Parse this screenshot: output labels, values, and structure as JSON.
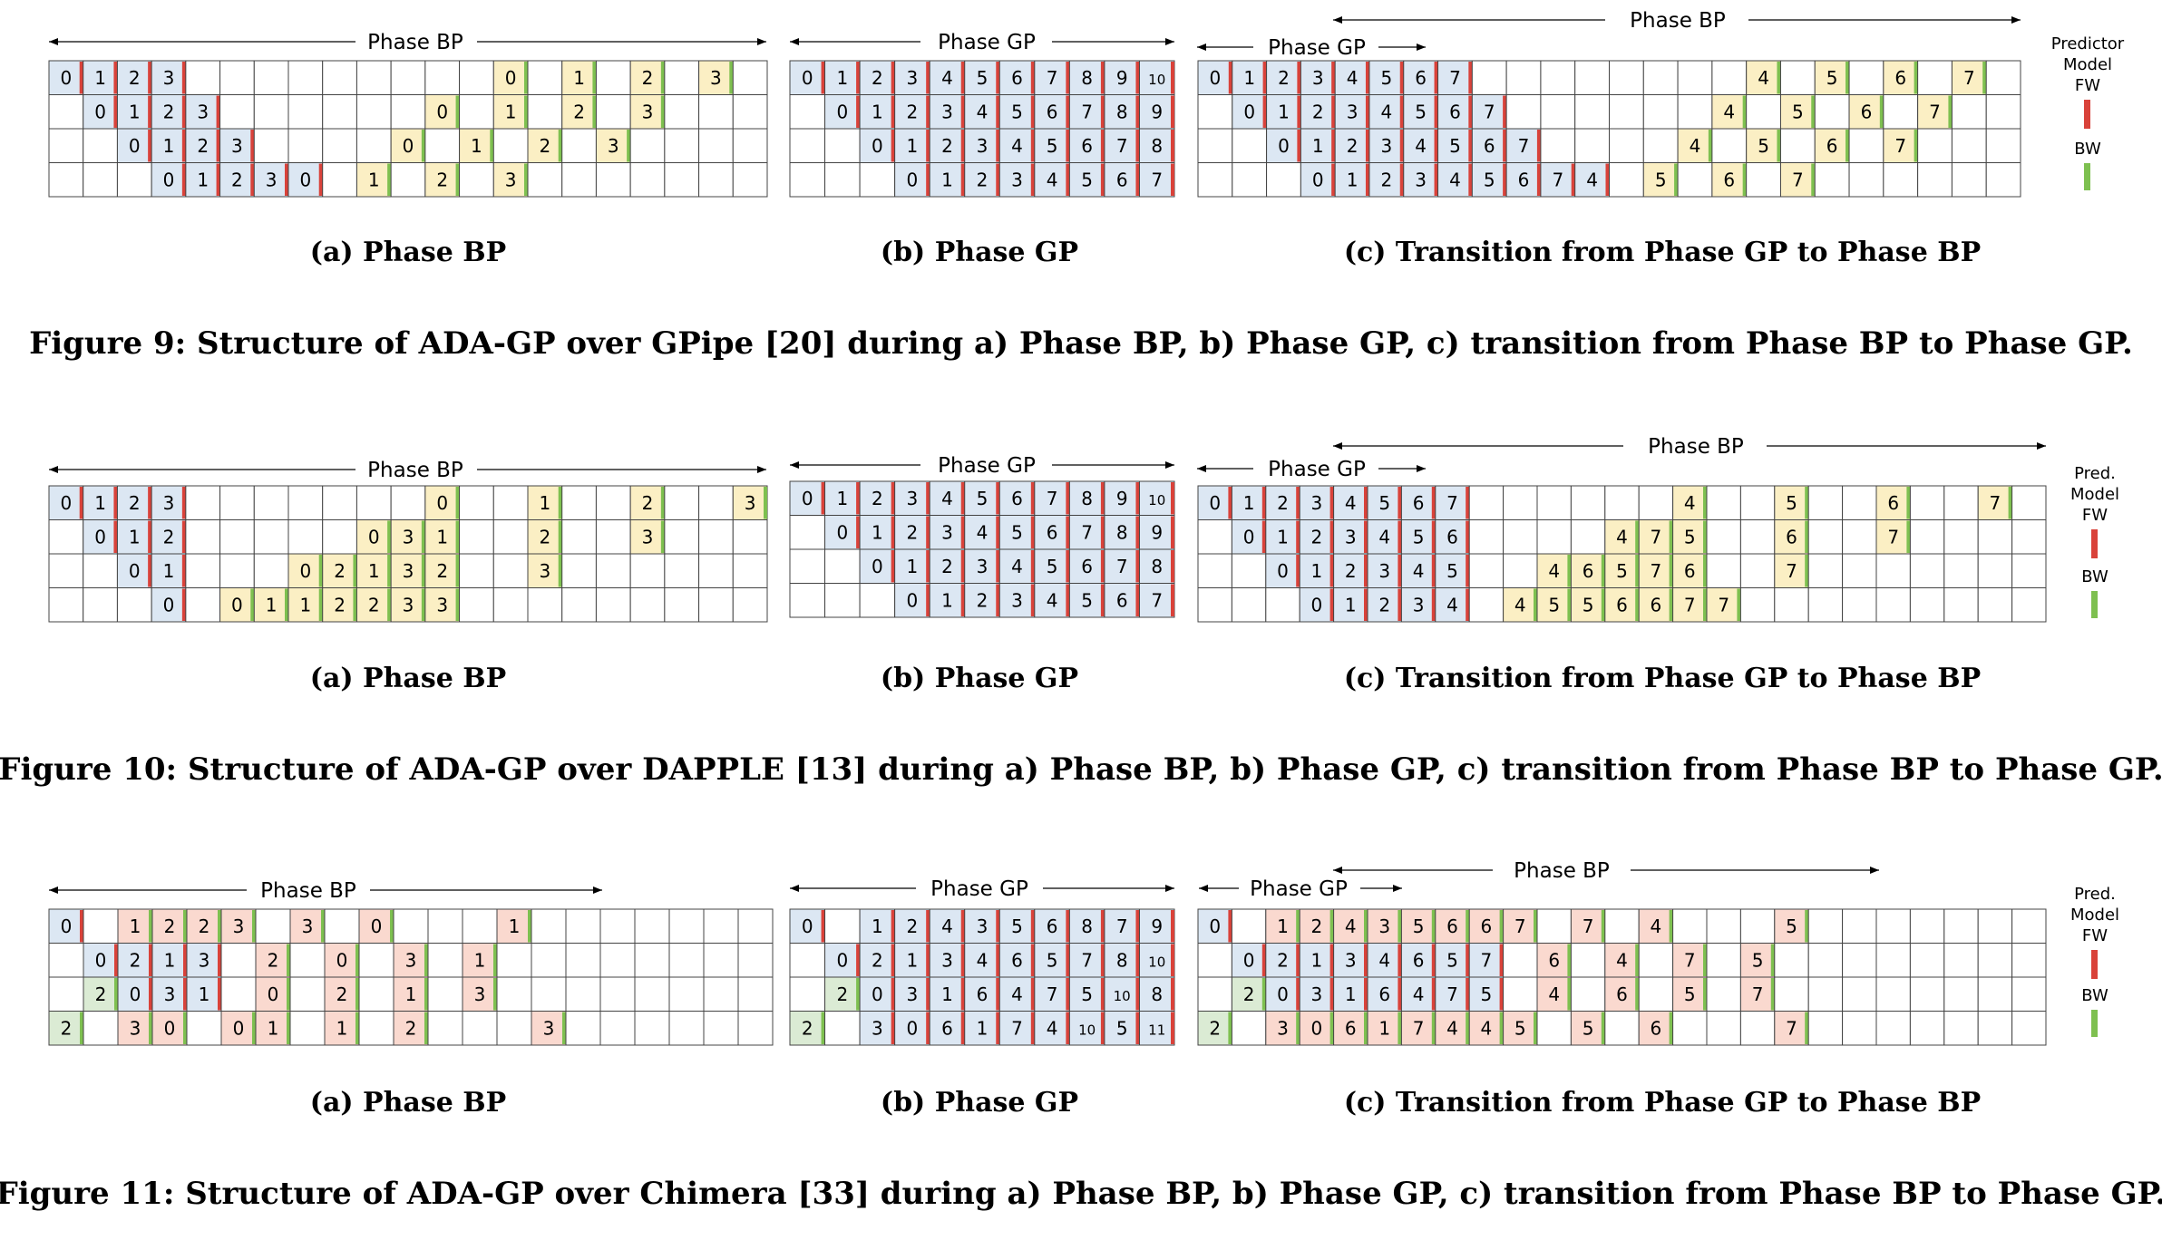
{
  "colors": {
    "forward_fill": "#dce7f3",
    "backward_gp_fill": "#fbefc4",
    "backward_bp_fill": "#fad9cf",
    "recompute_fill": "#dbebd4",
    "grid_stroke": "#444444",
    "fw_marker": "#d9423a",
    "bw_marker": "#7ec050"
  },
  "legend": {
    "fig9": {
      "title_lines": [
        "Predictor",
        "Model"
      ],
      "fw": "FW",
      "bw": "BW"
    },
    "fig10": {
      "title_lines": [
        "Pred.",
        "Model"
      ],
      "fw": "FW",
      "bw": "BW"
    },
    "fig11": {
      "title_lines": [
        "Pred.",
        "Model"
      ],
      "fw": "FW",
      "bw": "BW"
    }
  },
  "figures": [
    {
      "id": "fig9",
      "caption": "Figure 9: Structure of ADA-GP over GPipe [20] during a) Phase BP, b) Phase GP, c) transition from Phase BP to Phase GP.",
      "panels": [
        {
          "caption": "(a) Phase BP",
          "phase_labels": [
            "Phase BP"
          ],
          "rows": [
            [
              "0",
              "1",
              "2",
              "3",
              "",
              "",
              "",
              "",
              "",
              "",
              "",
              "",
              "",
              "0",
              "",
              "1",
              "",
              "2",
              "",
              "3",
              ""
            ],
            [
              "",
              "0",
              "1",
              "2",
              "3",
              "",
              "",
              "",
              "",
              "",
              "",
              "0",
              "",
              "1",
              "",
              "2",
              "",
              "3",
              "",
              "",
              ""
            ],
            [
              "",
              "",
              "0",
              "1",
              "2",
              "3",
              "",
              "",
              "",
              "",
              "0",
              "",
              "1",
              "",
              "2",
              "",
              "3",
              "",
              "",
              "",
              ""
            ],
            [
              "",
              "",
              "",
              "0",
              "1",
              "2",
              "3",
              "0",
              "",
              "1",
              "",
              "2",
              "",
              "3",
              "",
              "",
              "",
              "",
              "",
              "",
              ""
            ]
          ]
        },
        {
          "caption": "(b) Phase GP",
          "phase_labels": [
            "Phase GP"
          ],
          "rows": [
            [
              "0",
              "1",
              "2",
              "3",
              "4",
              "5",
              "6",
              "7",
              "8",
              "9",
              "10"
            ],
            [
              "",
              "0",
              "1",
              "2",
              "3",
              "4",
              "5",
              "6",
              "7",
              "8",
              "9"
            ],
            [
              "",
              "",
              "0",
              "1",
              "2",
              "3",
              "4",
              "5",
              "6",
              "7",
              "8"
            ],
            [
              "",
              "",
              "",
              "0",
              "1",
              "2",
              "3",
              "4",
              "5",
              "6",
              "7"
            ]
          ]
        },
        {
          "caption": "(c) Transition from Phase GP to Phase BP",
          "phase_labels": [
            "Phase GP",
            "Phase BP"
          ],
          "rows": [
            [
              "0",
              "1",
              "2",
              "3",
              "4",
              "5",
              "6",
              "7",
              "",
              "",
              "",
              "",
              "",
              "",
              "",
              "",
              "4",
              "",
              "5",
              "",
              "6",
              "",
              "7",
              ""
            ],
            [
              "",
              "0",
              "1",
              "2",
              "3",
              "4",
              "5",
              "6",
              "7",
              "",
              "",
              "",
              "",
              "",
              "",
              "4",
              "",
              "5",
              "",
              "6",
              "",
              "7",
              "",
              ""
            ],
            [
              "",
              "",
              "0",
              "1",
              "2",
              "3",
              "4",
              "5",
              "6",
              "7",
              "",
              "",
              "",
              "",
              "4",
              "",
              "5",
              "",
              "6",
              "",
              "7",
              "",
              "",
              ""
            ],
            [
              "",
              "",
              "",
              "0",
              "1",
              "2",
              "3",
              "4",
              "5",
              "6",
              "7",
              "4",
              "",
              "5",
              "",
              "6",
              "",
              "7",
              "",
              "",
              "",
              "",
              "",
              ""
            ]
          ]
        }
      ]
    },
    {
      "id": "fig10",
      "caption": "Figure 10: Structure of ADA-GP over DAPPLE [13] during a) Phase BP, b) Phase GP, c) transition from Phase BP to Phase GP.",
      "panels": [
        {
          "caption": "(a) Phase BP",
          "phase_labels": [
            "Phase BP"
          ],
          "rows": [
            [
              "0",
              "1",
              "2",
              "3",
              "",
              "",
              "",
              "",
              "",
              "",
              "",
              "0",
              "",
              "",
              "1",
              "",
              "",
              "2",
              "",
              "",
              "3"
            ],
            [
              "",
              "0",
              "1",
              "2",
              "",
              "",
              "",
              "",
              "",
              "0",
              "3",
              "1",
              "",
              "",
              "2",
              "",
              "",
              "3",
              "",
              "",
              ""
            ],
            [
              "",
              "",
              "0",
              "1",
              "",
              "",
              "",
              "0",
              "2",
              "1",
              "3",
              "2",
              "",
              "",
              "3",
              "",
              "",
              "",
              "",
              "",
              ""
            ],
            [
              "",
              "",
              "",
              "0",
              "",
              "0",
              "1",
              "1",
              "2",
              "2",
              "3",
              "3",
              "",
              "",
              "",
              "",
              "",
              "",
              "",
              "",
              ""
            ]
          ]
        },
        {
          "caption": "(b) Phase GP",
          "phase_labels": [
            "Phase GP"
          ],
          "rows": [
            [
              "0",
              "1",
              "2",
              "3",
              "4",
              "5",
              "6",
              "7",
              "8",
              "9",
              "10"
            ],
            [
              "",
              "0",
              "1",
              "2",
              "3",
              "4",
              "5",
              "6",
              "7",
              "8",
              "9"
            ],
            [
              "",
              "",
              "0",
              "1",
              "2",
              "3",
              "4",
              "5",
              "6",
              "7",
              "8"
            ],
            [
              "",
              "",
              "",
              "0",
              "1",
              "2",
              "3",
              "4",
              "5",
              "6",
              "7"
            ]
          ]
        },
        {
          "caption": "(c) Transition from Phase GP to Phase BP",
          "phase_labels": [
            "Phase GP",
            "Phase BP"
          ],
          "rows": [
            [
              "0",
              "1",
              "2",
              "3",
              "4",
              "5",
              "6",
              "7",
              "",
              "",
              "",
              "",
              "",
              "",
              "4",
              "",
              "",
              "5",
              "",
              "",
              "6",
              "",
              "",
              "7",
              ""
            ],
            [
              "",
              "0",
              "1",
              "2",
              "3",
              "4",
              "5",
              "6",
              "",
              "",
              "",
              "",
              "4",
              "7",
              "5",
              "",
              "",
              "6",
              "",
              "",
              "7",
              "",
              "",
              "",
              ""
            ],
            [
              "",
              "",
              "0",
              "1",
              "2",
              "3",
              "4",
              "5",
              "",
              "",
              "4",
              "6",
              "5",
              "7",
              "6",
              "",
              "",
              "7",
              "",
              "",
              "",
              "",
              "",
              "",
              ""
            ],
            [
              "",
              "",
              "",
              "0",
              "1",
              "2",
              "3",
              "4",
              "",
              "4",
              "5",
              "5",
              "6",
              "6",
              "7",
              "7",
              "",
              "",
              "",
              "",
              "",
              "",
              "",
              "",
              ""
            ]
          ]
        }
      ]
    },
    {
      "id": "fig11",
      "caption": "Figure 11: Structure of ADA-GP over Chimera [33] during a) Phase BP, b) Phase GP, c) transition from Phase BP to Phase GP.",
      "panels": [
        {
          "caption": "(a) Phase BP",
          "phase_labels": [
            "Phase BP"
          ],
          "rows": [
            [
              "0",
              "",
              "1",
              "2",
              "2",
              "3",
              "",
              "3",
              "",
              "0",
              "",
              "",
              "",
              "1",
              "",
              "",
              "",
              "",
              "",
              "",
              ""
            ],
            [
              "",
              "0",
              "2",
              "1",
              "3",
              "",
              "2",
              "",
              "0",
              "",
              "3",
              "",
              "1",
              "",
              "",
              "",
              "",
              "",
              "",
              "",
              ""
            ],
            [
              "",
              "2",
              "0",
              "3",
              "1",
              "",
              "0",
              "",
              "2",
              "",
              "1",
              "",
              "3",
              "",
              "",
              "",
              "",
              "",
              "",
              "",
              ""
            ],
            [
              "2",
              "",
              "3",
              "0",
              "",
              "0",
              "1",
              "",
              "1",
              "",
              "2",
              "",
              "",
              "",
              "3",
              "",
              "",
              "",
              "",
              "",
              ""
            ]
          ]
        },
        {
          "caption": "(b) Phase GP",
          "phase_labels": [
            "Phase GP"
          ],
          "rows": [
            [
              "0",
              "",
              "1",
              "2",
              "4",
              "3",
              "5",
              "6",
              "8",
              "7",
              "9"
            ],
            [
              "",
              "0",
              "2",
              "1",
              "3",
              "4",
              "6",
              "5",
              "7",
              "8",
              "10"
            ],
            [
              "",
              "2",
              "0",
              "3",
              "1",
              "6",
              "4",
              "7",
              "5",
              "10",
              "8"
            ],
            [
              "2",
              "",
              "3",
              "0",
              "6",
              "1",
              "7",
              "4",
              "10",
              "5",
              "11"
            ]
          ]
        },
        {
          "caption": "(c) Transition from Phase GP to Phase BP",
          "phase_labels": [
            "Phase GP",
            "Phase BP"
          ],
          "rows": [
            [
              "0",
              "",
              "1",
              "2",
              "4",
              "3",
              "5",
              "6",
              "6",
              "7",
              "",
              "7",
              "",
              "4",
              "",
              "",
              "",
              "5",
              "",
              "",
              "",
              "",
              "",
              "",
              ""
            ],
            [
              "",
              "0",
              "2",
              "1",
              "3",
              "4",
              "6",
              "5",
              "7",
              "",
              "6",
              "",
              "4",
              "",
              "7",
              "",
              "5",
              "",
              "",
              "",
              "",
              "",
              "",
              "",
              ""
            ],
            [
              "",
              "2",
              "0",
              "3",
              "1",
              "6",
              "4",
              "7",
              "5",
              "",
              "4",
              "",
              "6",
              "",
              "5",
              "",
              "7",
              "",
              "",
              "",
              "",
              "",
              "",
              "",
              ""
            ],
            [
              "2",
              "",
              "3",
              "0",
              "6",
              "1",
              "7",
              "4",
              "4",
              "5",
              "",
              "5",
              "",
              "6",
              "",
              "",
              "",
              "7",
              "",
              "",
              "",
              "",
              "",
              "",
              ""
            ]
          ]
        }
      ]
    }
  ]
}
